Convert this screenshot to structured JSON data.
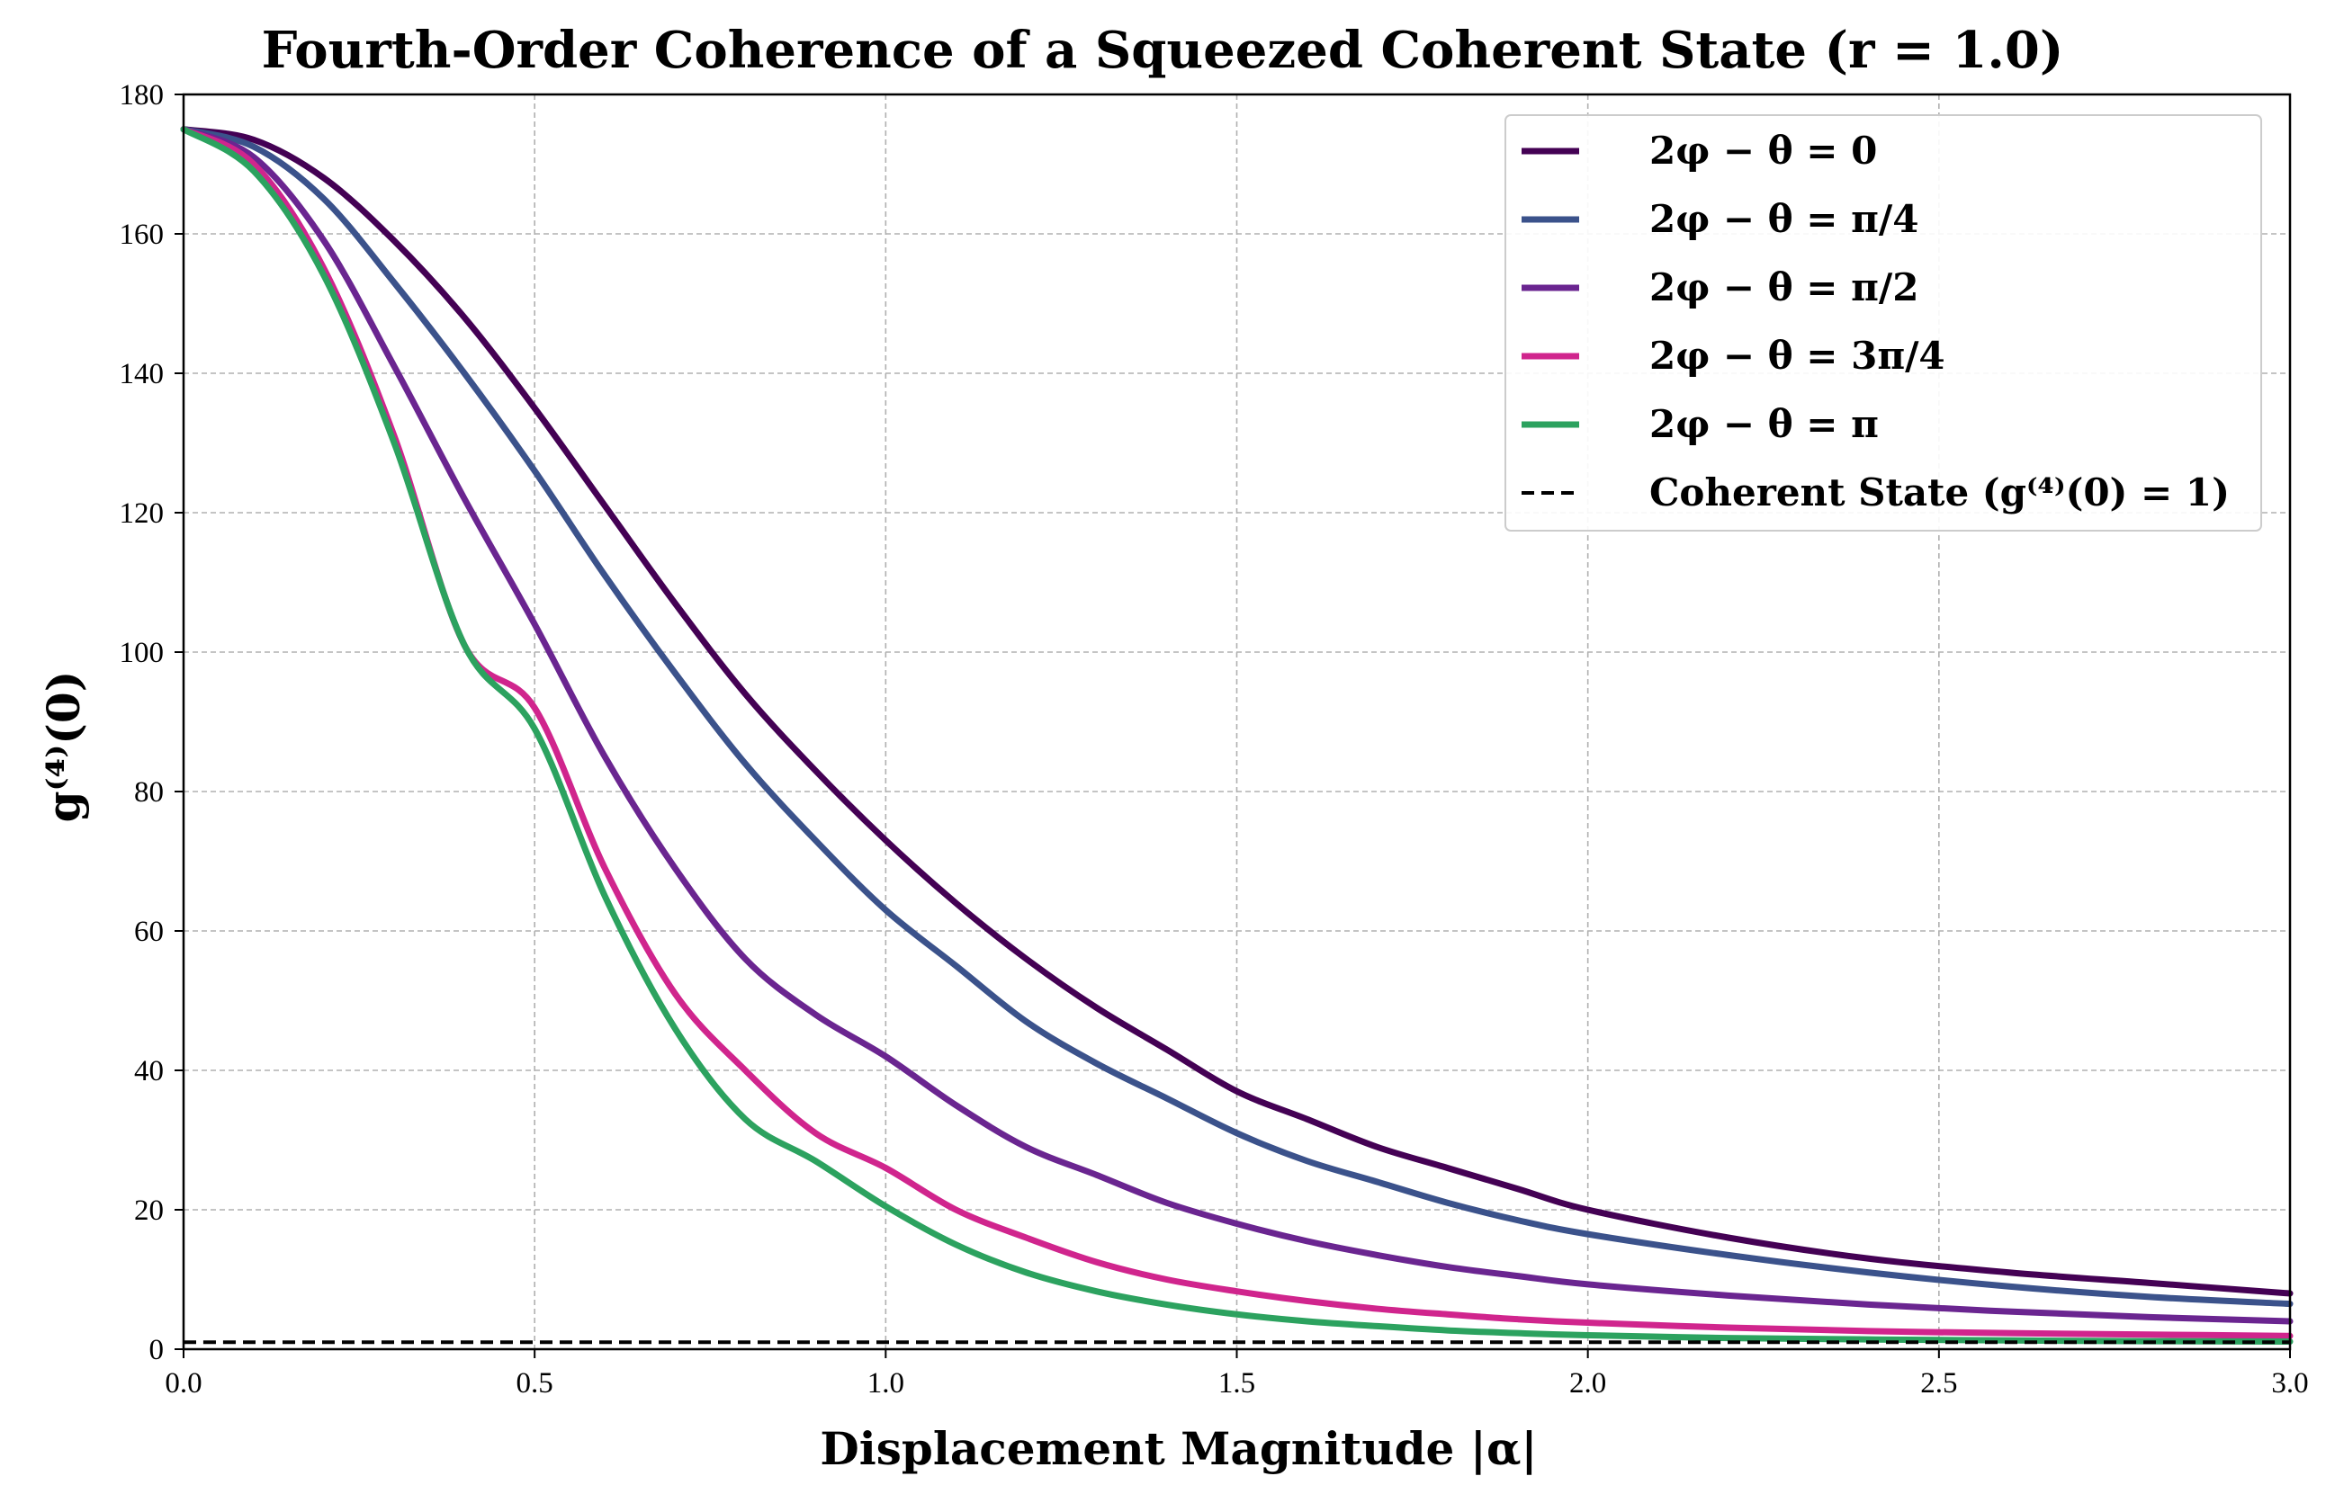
{
  "chart_data": {
    "type": "line",
    "title": "Fourth-Order Coherence of a Squeezed Coherent State (r = 1.0)",
    "xlabel": "Displacement Magnitude |α|",
    "ylabel": "g⁽⁴⁾(0)",
    "xlim": [
      0,
      3
    ],
    "ylim": [
      0,
      180
    ],
    "xticks": [
      0.0,
      0.5,
      1.0,
      1.5,
      2.0,
      2.5,
      3.0
    ],
    "xtick_labels": [
      "0.0",
      "0.5",
      "1.0",
      "1.5",
      "2.0",
      "2.5",
      "3.0"
    ],
    "yticks": [
      0,
      20,
      40,
      60,
      80,
      100,
      120,
      140,
      160,
      180
    ],
    "ytick_labels": [
      "0",
      "20",
      "40",
      "60",
      "80",
      "100",
      "120",
      "140",
      "160",
      "180"
    ],
    "grid": true,
    "legend_position": "top-right",
    "x": [
      0.0,
      0.1,
      0.2,
      0.3,
      0.4,
      0.5,
      0.6,
      0.7,
      0.8,
      0.9,
      1.0,
      1.1,
      1.2,
      1.3,
      1.4,
      1.5,
      1.6,
      1.7,
      1.8,
      1.9,
      2.0,
      2.2,
      2.4,
      2.6,
      2.8,
      3.0
    ],
    "series": [
      {
        "name": "2φ − θ = 0",
        "color": "#440154",
        "style": "solid",
        "values": [
          175,
          173.5,
          168,
          159,
          148,
          135,
          121,
          107,
          94,
          83,
          73,
          64,
          56,
          49,
          43,
          37,
          33,
          29,
          26,
          23,
          20,
          16,
          13,
          11,
          9.5,
          8
        ]
      },
      {
        "name": "2φ − θ = π/4",
        "color": "#3b528b",
        "style": "solid",
        "values": [
          175,
          172.5,
          165,
          153,
          140,
          126,
          111,
          97,
          84,
          73,
          63,
          55,
          47,
          41,
          36,
          31,
          27,
          24,
          21,
          18.5,
          16.5,
          13.5,
          11,
          9,
          7.5,
          6.5
        ]
      },
      {
        "name": "2φ − θ = π/2",
        "color": "#6a2590",
        "style": "solid",
        "values": [
          175,
          171,
          159,
          141,
          122,
          104,
          85,
          69,
          56,
          48,
          42,
          35,
          29,
          25,
          21,
          18,
          15.5,
          13.5,
          11.8,
          10.5,
          9.3,
          7.7,
          6.4,
          5.4,
          4.6,
          4
        ]
      },
      {
        "name": "2φ − θ = 3π/4",
        "color": "#d0258d",
        "style": "solid",
        "values": [
          175,
          170,
          155,
          131,
          101,
          92,
          69,
          51,
          40,
          31,
          26,
          20,
          16,
          12.5,
          10,
          8.3,
          6.9,
          5.8,
          5,
          4.3,
          3.8,
          3.1,
          2.6,
          2.3,
          2.1,
          1.9
        ]
      },
      {
        "name": "2φ − θ = π",
        "color": "#2ca25f",
        "style": "solid",
        "values": [
          175,
          169,
          154,
          130,
          101,
          89,
          65,
          46,
          33,
          27,
          20.5,
          15,
          11,
          8.3,
          6.4,
          5,
          4,
          3.3,
          2.7,
          2.3,
          2,
          1.6,
          1.4,
          1.25,
          1.15,
          1.1
        ]
      },
      {
        "name": "Coherent State (g⁽⁴⁾(0) = 1)",
        "color": "#000000",
        "style": "dashed",
        "values": [
          1,
          1,
          1,
          1,
          1,
          1,
          1,
          1,
          1,
          1,
          1,
          1,
          1,
          1,
          1,
          1,
          1,
          1,
          1,
          1,
          1,
          1,
          1,
          1,
          1,
          1
        ]
      }
    ]
  }
}
